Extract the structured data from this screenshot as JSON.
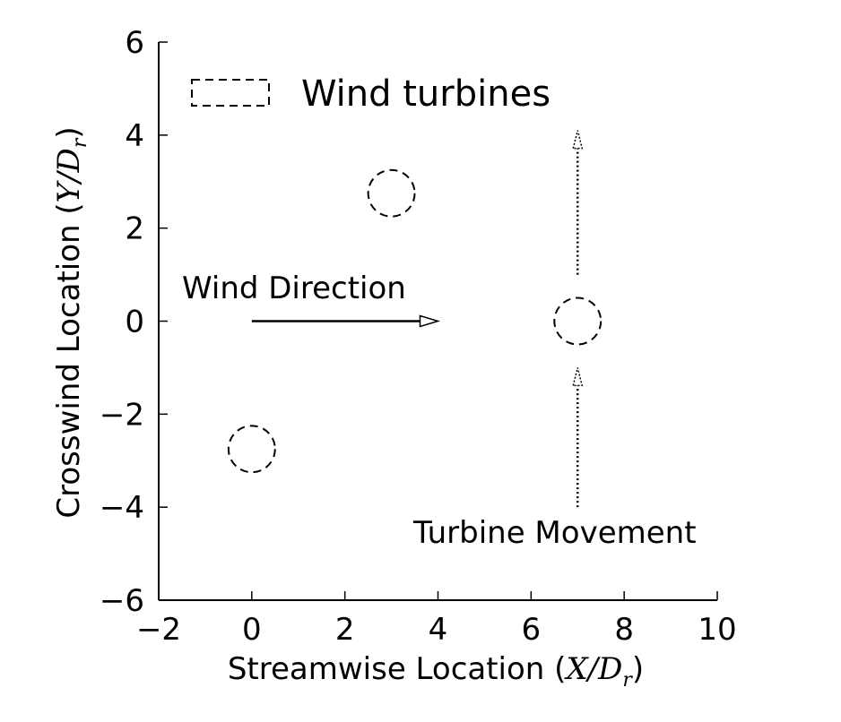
{
  "chart_data": {
    "type": "scatter",
    "xlabel_text": "Streamwise Location (",
    "xlabel_math": "X/D",
    "xlabel_sub": "r",
    "xlabel_close": ")",
    "ylabel_text": "Crosswind Location (",
    "ylabel_math": "Y/D",
    "ylabel_sub": "r",
    "ylabel_close": ")",
    "xlim": [
      -2,
      10
    ],
    "ylim": [
      -6,
      6
    ],
    "x_ticks": [
      -2,
      0,
      2,
      4,
      6,
      8,
      10
    ],
    "y_ticks": [
      -6,
      -4,
      -2,
      0,
      2,
      4,
      6
    ],
    "x_tick_labels": [
      "−2",
      "0",
      "2",
      "4",
      "6",
      "8",
      "10"
    ],
    "y_tick_labels": [
      "−6",
      "−4",
      "−2",
      "0",
      "2",
      "4",
      "6"
    ],
    "legend": {
      "label": "Wind turbines",
      "placement": "top-left",
      "style": "dashed"
    },
    "series": [
      {
        "name": "Wind turbines",
        "marker": "dashed-circle",
        "diameter": 1,
        "points": [
          {
            "x": 0,
            "y": -2.75
          },
          {
            "x": 3,
            "y": 2.75
          },
          {
            "x": 7,
            "y": 0
          }
        ]
      }
    ],
    "annotations": {
      "wind_direction": {
        "text": "Wind Direction",
        "arrow_from": [
          0,
          0
        ],
        "arrow_to": [
          4,
          0
        ]
      },
      "turbine_movement": {
        "text": "Turbine Movement",
        "arrows": [
          {
            "from": [
              7,
              1
            ],
            "to": [
              7,
              4.1
            ]
          },
          {
            "from": [
              7,
              -4
            ],
            "to": [
              7,
              -1
            ]
          }
        ]
      }
    },
    "grid": false
  }
}
